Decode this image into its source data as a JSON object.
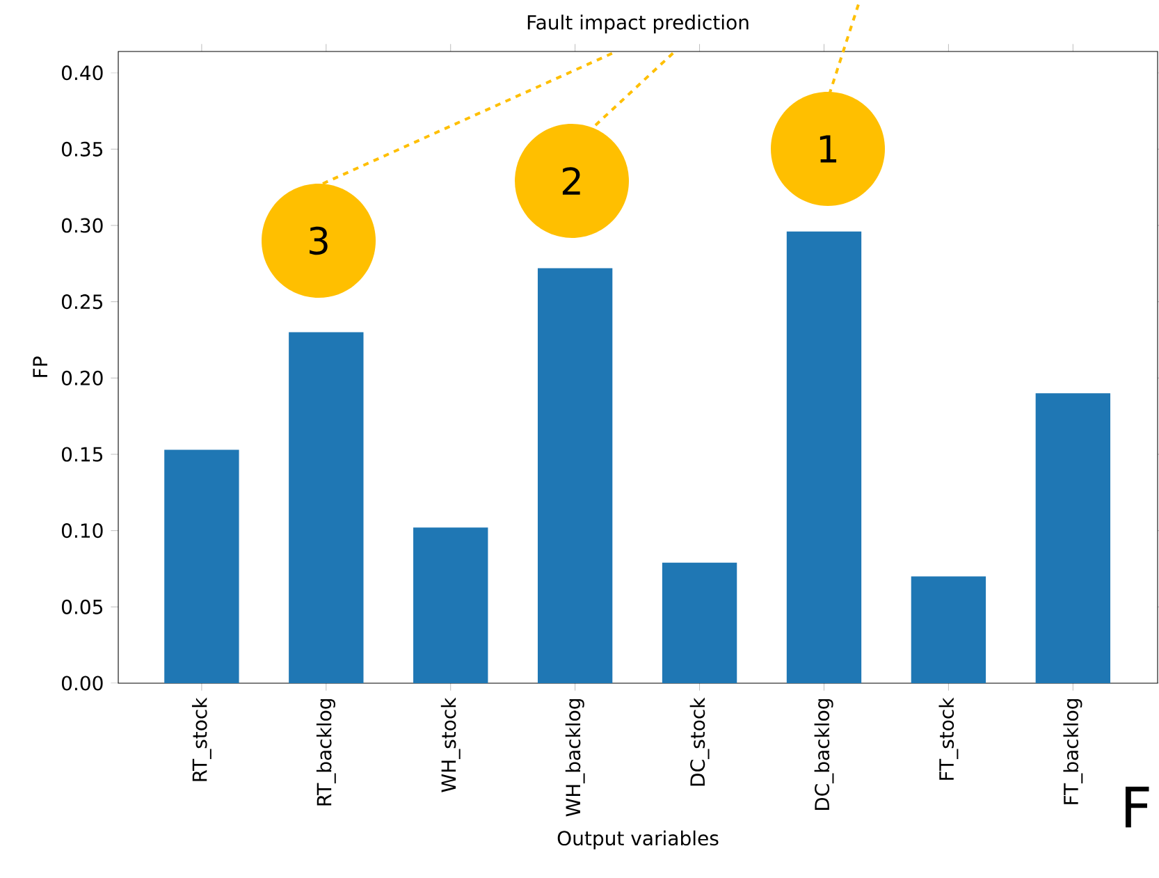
{
  "chart_data": {
    "type": "bar",
    "title": "Fault impact prediction",
    "xlabel": "Output variables",
    "ylabel": "FP",
    "categories": [
      "RT_stock",
      "RT_backlog",
      "WH_stock",
      "WH_backlog",
      "DC_stock",
      "DC_backlog",
      "FT_stock",
      "FT_backlog"
    ],
    "values": [
      0.153,
      0.23,
      0.102,
      0.272,
      0.079,
      0.296,
      0.07,
      0.19
    ],
    "color": "#1f77b4",
    "ylim": [
      0,
      0.414
    ],
    "yticks": [
      {
        "value": 0,
        "label": "0.00"
      },
      {
        "value": 0.05,
        "label": "0.05"
      },
      {
        "value": 0.1,
        "label": "0.10"
      },
      {
        "value": 0.15,
        "label": "0.15"
      },
      {
        "value": 0.2,
        "label": "0.20"
      },
      {
        "value": 0.25,
        "label": "0.25"
      },
      {
        "value": 0.3,
        "label": "0.30"
      },
      {
        "value": 0.35,
        "label": "0.35"
      },
      {
        "value": 0.4,
        "label": "0.40"
      }
    ],
    "annotations": [
      "3",
      "2",
      "1",
      "F"
    ],
    "grid": false
  }
}
